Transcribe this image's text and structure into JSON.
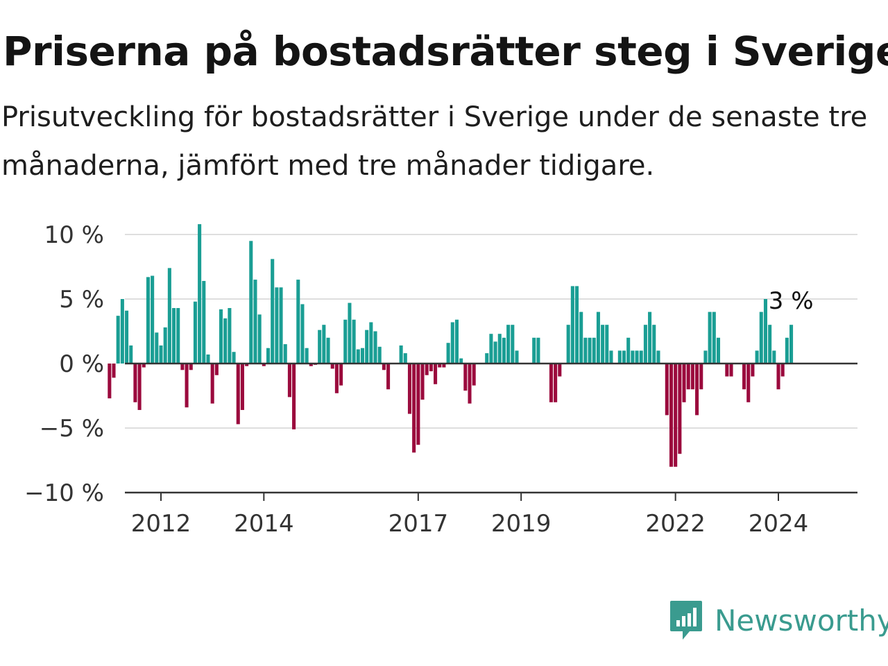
{
  "header": {
    "title": "Priserna på bostadsrätter steg i Sverige",
    "subtitle": "Prisutveckling för bostadsrätter i Sverige under de senaste tre månaderna, jämfört med tre månader tidigare."
  },
  "brand": {
    "name": "Newsworthy",
    "icon": "chart-bubble-icon",
    "color": "#3a9b8f"
  },
  "chart_data": {
    "type": "bar",
    "x_start": "2011-01",
    "x_interval": "month",
    "ylim": [
      -10,
      10
    ],
    "yticks": [
      10,
      5,
      0,
      -5,
      -10
    ],
    "ytick_labels": [
      "10 %",
      "5 %",
      "0 %",
      "−5 %",
      "−10 %"
    ],
    "xticks": [
      "2012",
      "2014",
      "2017",
      "2019",
      "2022",
      "2024"
    ],
    "xtick_months": [
      "2012-01",
      "2014-01",
      "2017-01",
      "2019-01",
      "2022-01",
      "2024-01"
    ],
    "grid": true,
    "colors": {
      "positive": "#1a9e94",
      "negative": "#9b0a3d"
    },
    "last_label": "3 %",
    "values": [
      -2.7,
      -1.1,
      3.7,
      5.0,
      4.1,
      1.4,
      -3.0,
      -3.6,
      -0.3,
      6.7,
      6.8,
      2.4,
      1.4,
      2.8,
      7.4,
      4.3,
      4.3,
      -0.5,
      -3.4,
      -0.5,
      4.8,
      10.8,
      6.4,
      0.7,
      -3.1,
      -0.9,
      4.2,
      3.5,
      4.3,
      0.9,
      -4.7,
      -3.6,
      -0.2,
      9.5,
      6.5,
      3.8,
      -0.2,
      1.2,
      8.1,
      5.9,
      5.9,
      1.5,
      -2.6,
      -5.1,
      6.5,
      4.6,
      1.2,
      -0.2,
      -0.1,
      2.6,
      3.0,
      2.0,
      -0.4,
      -2.3,
      -1.7,
      3.4,
      4.7,
      3.4,
      1.1,
      1.2,
      2.6,
      3.2,
      2.5,
      1.3,
      -0.5,
      -2.0,
      0.0,
      0.0,
      1.4,
      0.8,
      -3.9,
      -6.9,
      -6.3,
      -2.8,
      -0.9,
      -0.6,
      -1.6,
      -0.3,
      -0.3,
      1.6,
      3.2,
      3.4,
      0.4,
      -2.1,
      -3.1,
      -1.7,
      0.0,
      0.0,
      0.8,
      2.3,
      1.7,
      2.3,
      2.0,
      3.0,
      3.0,
      1.0,
      0.0,
      0.0,
      0.0,
      2.0,
      2.0,
      0.0,
      0.0,
      -3.0,
      -3.0,
      -1.0,
      0.0,
      3.0,
      6.0,
      6.0,
      4.0,
      2.0,
      2.0,
      2.0,
      4.0,
      3.0,
      3.0,
      1.0,
      0.0,
      1.0,
      1.0,
      2.0,
      1.0,
      1.0,
      1.0,
      3.0,
      4.0,
      3.0,
      1.0,
      0.0,
      -4.0,
      -8.0,
      -8.0,
      -7.0,
      -3.0,
      -2.0,
      -2.0,
      -4.0,
      -2.0,
      1.0,
      4.0,
      4.0,
      2.0,
      0.0,
      -1.0,
      -1.0,
      0.0,
      0.0,
      -2.0,
      -3.0,
      -1.0,
      1.0,
      4.0,
      5.0,
      3.0,
      1.0,
      -2.0,
      -1.0,
      2.0,
      3.0
    ]
  }
}
